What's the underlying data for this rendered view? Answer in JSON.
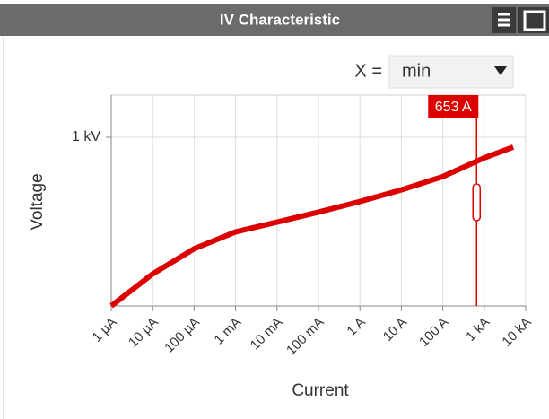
{
  "controls": {
    "x_label": "X =",
    "x_select": "min"
  },
  "chart_data": {
    "type": "line",
    "title": "IV Characteristic",
    "xlabel": "Current",
    "ylabel": "Voltage",
    "xscale": "log",
    "grid": true,
    "color": "#dd0000",
    "x": [
      1e-06,
      1e-05,
      0.0001,
      0.001,
      0.01,
      0.1,
      1,
      10,
      100,
      1000,
      5000
    ],
    "values": [
      0,
      190,
      339,
      439,
      497,
      556,
      619,
      688,
      767,
      878,
      942
    ],
    "xlim": [
      1e-06,
      10000
    ],
    "xticks": [
      {
        "value": 1e-06,
        "label": "1 µA"
      },
      {
        "value": 1e-05,
        "label": "10 µA"
      },
      {
        "value": 0.0001,
        "label": "100 µA"
      },
      {
        "value": 0.001,
        "label": "1 mA"
      },
      {
        "value": 0.01,
        "label": "10 mA"
      },
      {
        "value": 0.1,
        "label": "100 mA"
      },
      {
        "value": 1,
        "label": "1 A"
      },
      {
        "value": 10,
        "label": "10 A"
      },
      {
        "value": 100,
        "label": "100 A"
      },
      {
        "value": 1000,
        "label": "1 kA"
      },
      {
        "value": 10000,
        "label": "10 kA"
      }
    ],
    "ylim": [
      0,
      1250
    ],
    "yticks": [
      {
        "value": 1000,
        "label": "1 kV"
      }
    ],
    "cursor": {
      "value": 653,
      "label": "653 A"
    }
  }
}
